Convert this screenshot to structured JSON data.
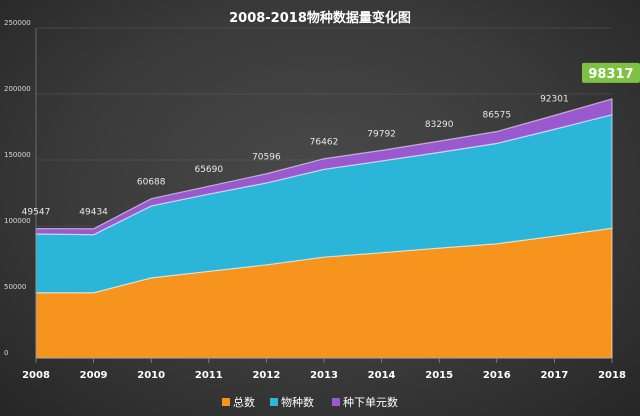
{
  "chart_data": {
    "type": "area",
    "stacked": true,
    "title": "2008-2018物种数据量变化图",
    "categories": [
      "2008",
      "2009",
      "2010",
      "2011",
      "2012",
      "2013",
      "2014",
      "2015",
      "2016",
      "2017",
      "2018"
    ],
    "series": [
      {
        "name": "总数",
        "color": "#f7941d",
        "values": [
          49547,
          49434,
          60688,
          65690,
          70596,
          76462,
          79792,
          83290,
          86575,
          92301,
          98317
        ]
      },
      {
        "name": "物种数",
        "color": "#2bb5d8",
        "values": [
          44500,
          44000,
          54500,
          58500,
          62000,
          66500,
          69500,
          72500,
          76000,
          81000,
          86000
        ]
      },
      {
        "name": "种下单元数",
        "color": "#9b59d0",
        "values": [
          4000,
          4500,
          5500,
          6000,
          7000,
          8000,
          8000,
          8500,
          9000,
          10500,
          12000
        ]
      }
    ],
    "data_labels": [
      "49547",
      "49434",
      "60688",
      "65690",
      "70596",
      "76462",
      "79792",
      "83290",
      "86575",
      "92301"
    ],
    "highlight_label": "98317",
    "highlight_color": "#7dc242",
    "yticks": [
      "0",
      "50000",
      "100000",
      "150000",
      "200000",
      "250000"
    ],
    "ylim": [
      0,
      250000
    ],
    "legend_position": "bottom",
    "grid": true
  }
}
